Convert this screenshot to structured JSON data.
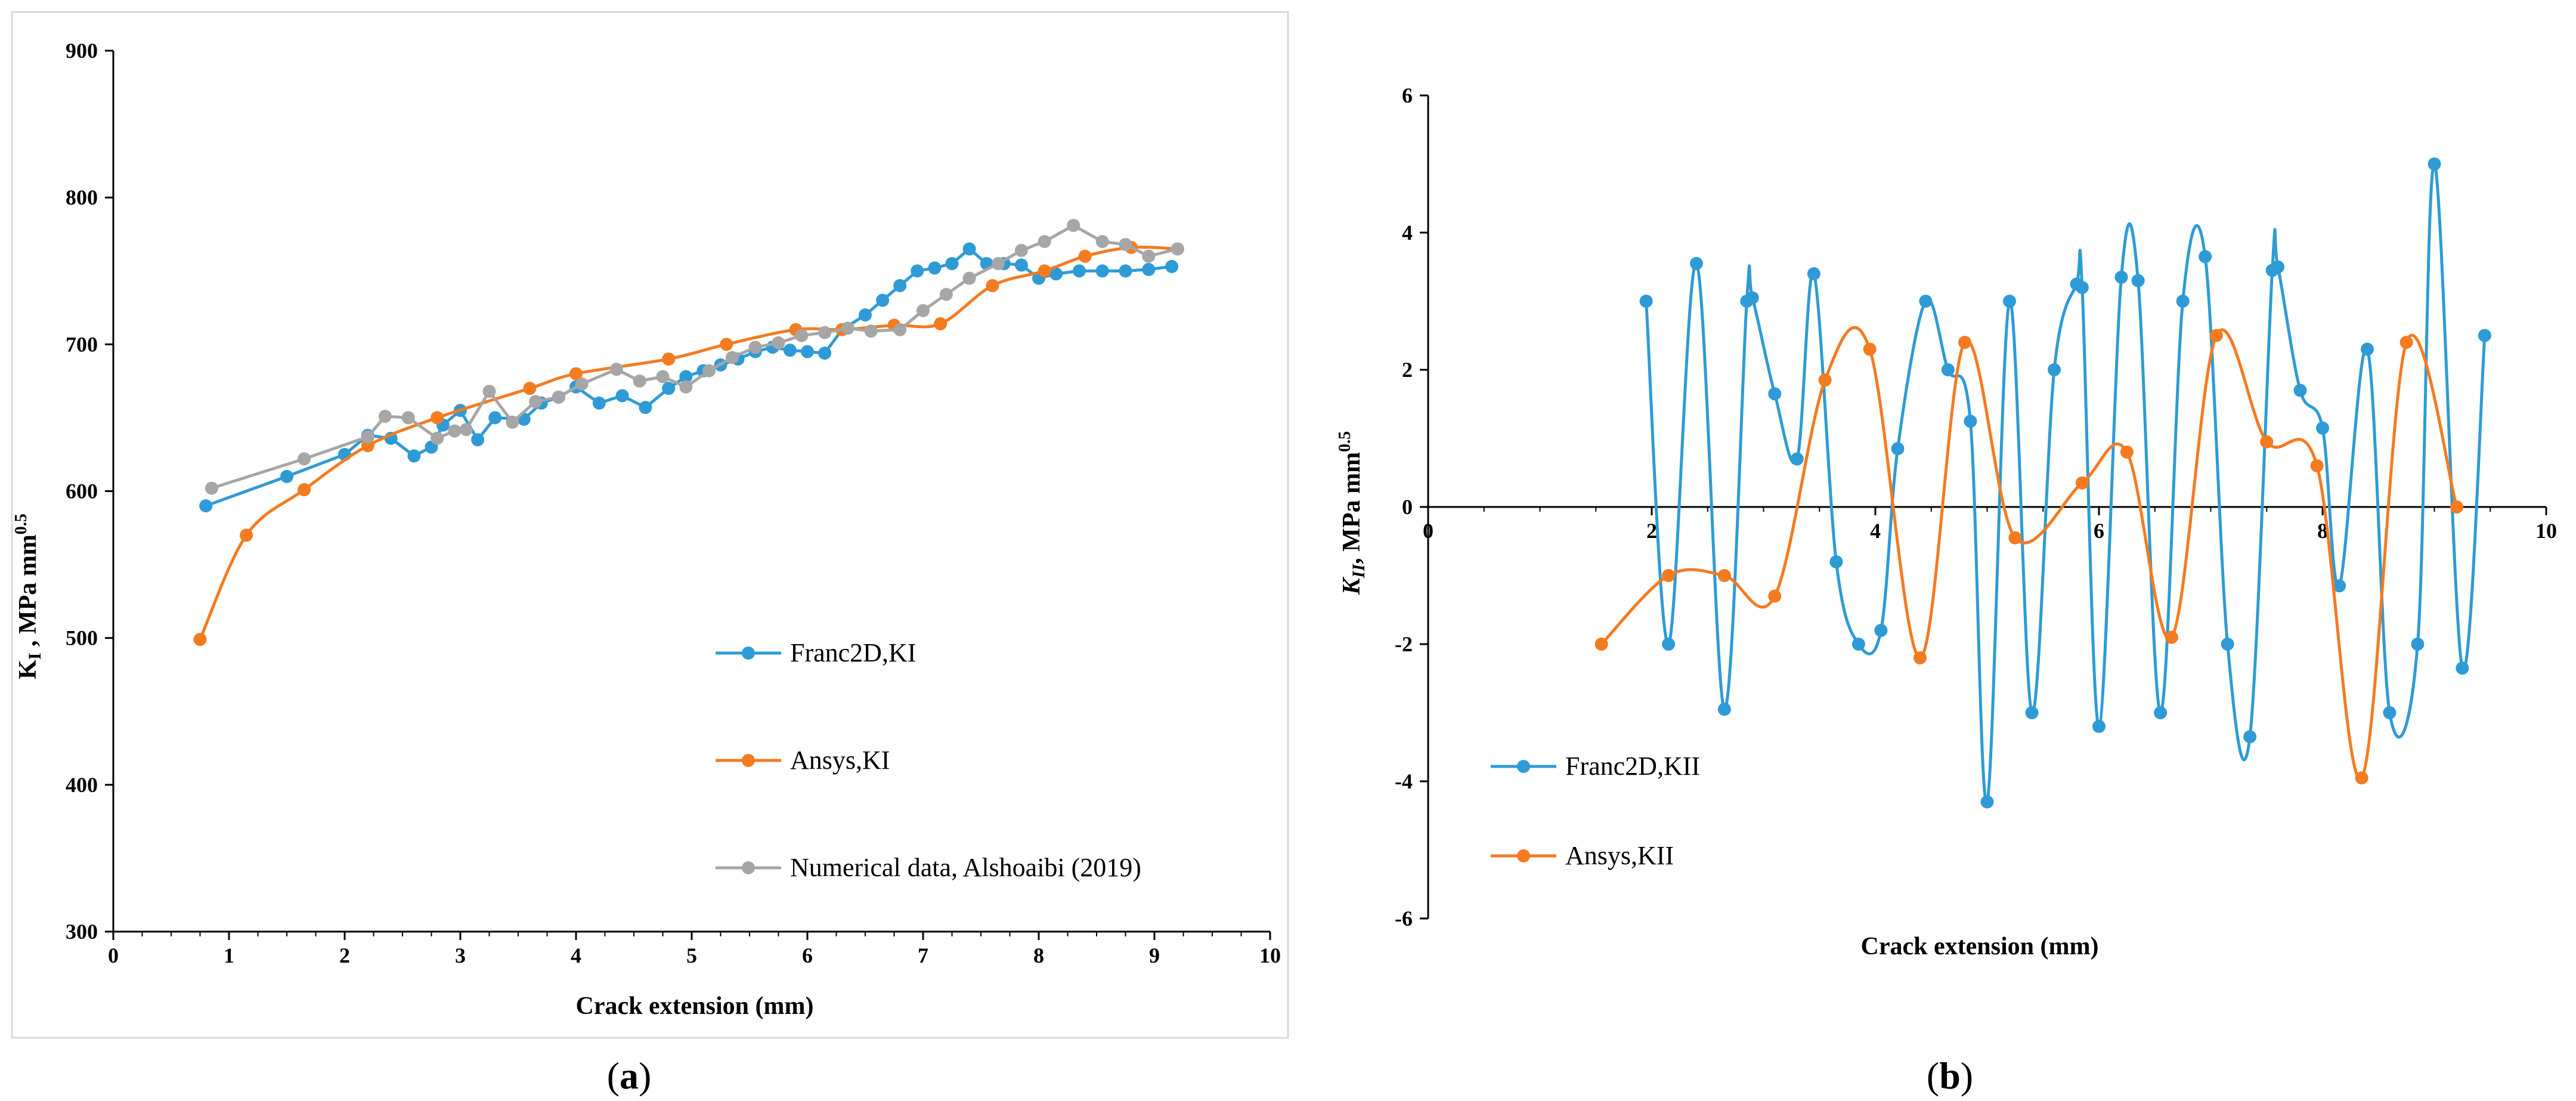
{
  "chart_data": [
    {
      "type": "line",
      "panel_label": "(a)",
      "panel_letter": "a",
      "xlabel": "Crack extension (mm)",
      "ylabel_main": "K",
      "ylabel_sub": "I",
      "ylabel_rest": " , MPa mm",
      "ylabel_sup": "0.5",
      "xlim": [
        0,
        10
      ],
      "ylim": [
        300,
        900
      ],
      "xticks": [
        "0",
        "1",
        "2",
        "3",
        "4",
        "5",
        "6",
        "7",
        "8",
        "9",
        "10"
      ],
      "yticks": [
        "300",
        "400",
        "500",
        "600",
        "700",
        "800",
        "900"
      ],
      "legend_position": "bottom-right",
      "series": [
        {
          "name": "Franc2D,KI",
          "color": "#2e9bd6",
          "smooth": false,
          "x": [
            0.8,
            1.5,
            2.0,
            2.2,
            2.4,
            2.6,
            2.75,
            2.85,
            3.0,
            3.15,
            3.3,
            3.55,
            3.7,
            3.85,
            4.0,
            4.2,
            4.4,
            4.6,
            4.8,
            4.95,
            5.1,
            5.25,
            5.4,
            5.55,
            5.7,
            5.85,
            6.0,
            6.15,
            6.3,
            6.5,
            6.65,
            6.8,
            6.95,
            7.1,
            7.25,
            7.4,
            7.55,
            7.7,
            7.85,
            8.0,
            8.15,
            8.35,
            8.55,
            8.75,
            8.95,
            9.15
          ],
          "y": [
            590,
            610,
            625,
            638,
            636,
            624,
            630,
            645,
            655,
            635,
            650,
            649,
            660,
            664,
            671,
            660,
            665,
            657,
            670,
            678,
            682,
            686,
            690,
            695,
            698,
            696,
            695,
            694,
            710,
            720,
            730,
            740,
            750,
            752,
            755,
            765,
            755,
            755,
            754,
            745,
            748,
            750,
            750,
            750,
            751,
            753
          ]
        },
        {
          "name": "Ansys,KI",
          "color": "#f47b20",
          "smooth": true,
          "x": [
            0.75,
            1.15,
            1.65,
            2.2,
            2.8,
            3.6,
            4.0,
            4.8,
            5.3,
            5.9,
            6.3,
            6.75,
            7.15,
            7.6,
            8.05,
            8.4,
            8.8,
            9.2
          ],
          "y": [
            499,
            570,
            601,
            631,
            650,
            670,
            680,
            690,
            700,
            710,
            710,
            713,
            714,
            740,
            750,
            760,
            766,
            765
          ],
          "markers_x": [
            0.75,
            1.15,
            1.65,
            2.2,
            2.8,
            3.6,
            4.0,
            4.8,
            5.3,
            5.9,
            6.3,
            6.75,
            7.15,
            7.6,
            8.05,
            8.4,
            8.8,
            9.2
          ],
          "markers_y": [
            499,
            570,
            601,
            631,
            650,
            670,
            680,
            690,
            700,
            710,
            710,
            713,
            714,
            740,
            750,
            760,
            766,
            765
          ]
        },
        {
          "name": "Numerical data, Alshoaibi (2019)",
          "color": "#a6a6a6",
          "smooth": false,
          "x": [
            0.85,
            1.65,
            2.2,
            2.35,
            2.55,
            2.8,
            2.95,
            3.05,
            3.25,
            3.45,
            3.65,
            3.85,
            4.05,
            4.35,
            4.55,
            4.75,
            4.95,
            5.15,
            5.35,
            5.55,
            5.75,
            5.95,
            6.15,
            6.35,
            6.55,
            6.8,
            7.0,
            7.2,
            7.4,
            7.65,
            7.85,
            8.05,
            8.3,
            8.55,
            8.75,
            8.95,
            9.2
          ],
          "y": [
            602,
            622,
            637,
            651,
            650,
            636,
            641,
            642,
            668,
            647,
            661,
            664,
            673,
            683,
            675,
            678,
            671,
            682,
            691,
            698,
            701,
            706,
            708,
            711,
            709,
            710,
            723,
            734,
            745,
            755,
            764,
            770,
            781,
            770,
            768,
            760,
            765
          ]
        }
      ]
    },
    {
      "type": "line",
      "panel_label": "(b)",
      "panel_letter": "b",
      "xlabel": "Crack extension (mm)",
      "ylabel_main": "K",
      "ylabel_sub": "II",
      "ylabel_rest": ", MPa mm",
      "ylabel_sup": "0.5",
      "xlim": [
        0,
        10
      ],
      "ylim": [
        -6,
        6
      ],
      "xticks": [
        "0",
        "2",
        "4",
        "6",
        "8",
        "10"
      ],
      "yticks": [
        "-6",
        "-4",
        "-2",
        "0",
        "2",
        "4",
        "6"
      ],
      "legend_position": "bottom-left",
      "series": [
        {
          "name": "Franc2D,KII",
          "color": "#2e9bd6",
          "smooth": true,
          "x": [
            1.95,
            2.15,
            2.4,
            2.65,
            2.85,
            2.9,
            3.1,
            3.3,
            3.45,
            3.65,
            3.85,
            4.05,
            4.2,
            4.45,
            4.65,
            4.85,
            5.0,
            5.2,
            5.4,
            5.6,
            5.8,
            5.85,
            6.0,
            6.2,
            6.35,
            6.55,
            6.75,
            6.95,
            7.15,
            7.35,
            7.55,
            7.6,
            7.8,
            8.0,
            8.15,
            8.4,
            8.6,
            8.85,
            9.0,
            9.25,
            9.45
          ],
          "y": [
            3.0,
            -2.0,
            3.55,
            -2.95,
            3.0,
            3.05,
            1.65,
            0.7,
            3.4,
            -0.8,
            -2.0,
            -1.8,
            0.85,
            3.0,
            2.0,
            1.25,
            -4.3,
            3.0,
            -3.0,
            2.0,
            3.25,
            3.2,
            -3.2,
            3.35,
            3.3,
            -3.0,
            3.0,
            3.65,
            -2.0,
            -3.35,
            3.45,
            3.5,
            1.7,
            1.15,
            -1.15,
            2.3,
            -3.0,
            -2.0,
            5.0,
            -2.35,
            2.5
          ]
        },
        {
          "name": "Ansys,KII",
          "color": "#f47b20",
          "smooth": true,
          "x": [
            1.55,
            2.15,
            2.65,
            3.1,
            3.55,
            3.95,
            4.4,
            4.8,
            5.25,
            5.85,
            6.25,
            6.65,
            7.05,
            7.5,
            7.95,
            8.35,
            8.75,
            9.2
          ],
          "y": [
            -2.0,
            -1.0,
            -1.0,
            -1.3,
            1.85,
            2.3,
            -2.2,
            2.4,
            -0.45,
            0.35,
            0.8,
            -1.9,
            2.5,
            0.95,
            0.6,
            -3.95,
            2.4,
            0.0
          ]
        }
      ]
    }
  ]
}
